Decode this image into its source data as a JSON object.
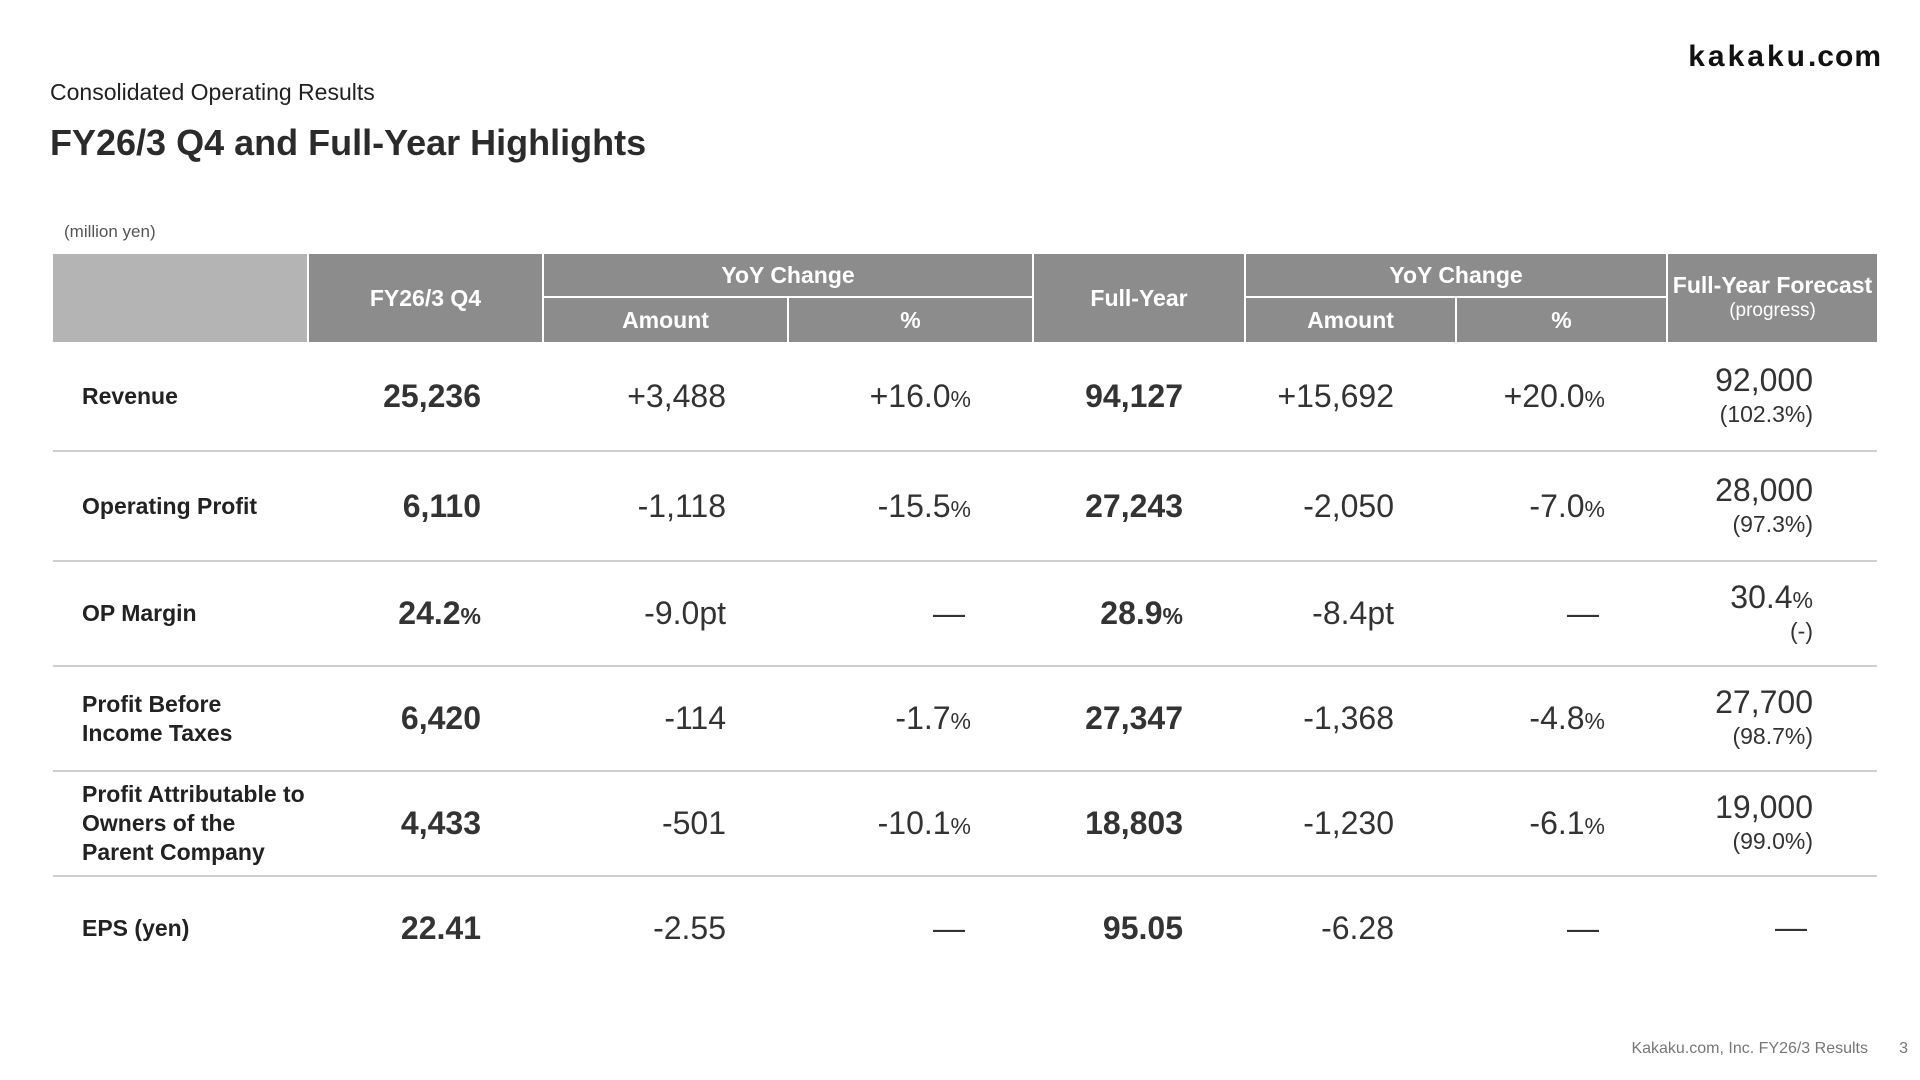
{
  "logo": {
    "brand": "kakaku",
    "suffix": ".com"
  },
  "header": {
    "subtitle": "Consolidated Operating Results",
    "title": "FY26/3 Q4 and Full-Year Highlights",
    "unit": "(million yen)"
  },
  "table": {
    "headers": {
      "q4": "FY26/3 Q4",
      "yoy1": "YoY Change",
      "full_year": "Full-Year",
      "yoy2": "YoY Change",
      "forecast": "Full-Year Forecast",
      "forecast_sub": "(progress)",
      "amount1": "Amount",
      "pct1": "%",
      "amount2": "Amount",
      "pct2": "%"
    },
    "rows": [
      {
        "label": "Revenue",
        "q4": "25,236",
        "q4_pct": "",
        "amt1": "+3,488",
        "pct1": "+16.0",
        "fy": "94,127",
        "fy_pct": "",
        "amt2": "+15,692",
        "pct2": "+20.0",
        "fc": "92,000",
        "fc_pct": "",
        "progress": "(102.3%)"
      },
      {
        "label": "Operating Profit",
        "q4": "6,110",
        "q4_pct": "",
        "amt1": "-1,118",
        "pct1": "-15.5",
        "fy": "27,243",
        "fy_pct": "",
        "amt2": "-2,050",
        "pct2": "-7.0",
        "fc": "28,000",
        "fc_pct": "",
        "progress": "(97.3%)"
      },
      {
        "label": "OP Margin",
        "q4": "24.2",
        "q4_pct": "%",
        "amt1": "-9.0pt",
        "pct1": "—",
        "fy": "28.9",
        "fy_pct": "%",
        "amt2": "-8.4pt",
        "pct2": "—",
        "fc": "30.4",
        "fc_pct": "%",
        "progress": "(-)"
      },
      {
        "label": "Profit Before Income Taxes",
        "q4": "6,420",
        "q4_pct": "",
        "amt1": "-114",
        "pct1": "-1.7",
        "fy": "27,347",
        "fy_pct": "",
        "amt2": "-1,368",
        "pct2": "-4.8",
        "fc": "27,700",
        "fc_pct": "",
        "progress": "(98.7%)"
      },
      {
        "label": "Profit Attributable to Owners of the Parent Company",
        "q4": "4,433",
        "q4_pct": "",
        "amt1": "-501",
        "pct1": "-10.1",
        "fy": "18,803",
        "fy_pct": "",
        "amt2": "-1,230",
        "pct2": "-6.1",
        "fc": "19,000",
        "fc_pct": "",
        "progress": "(99.0%)"
      },
      {
        "label": "EPS (yen)",
        "q4": "22.41",
        "q4_pct": "",
        "amt1": "-2.55",
        "pct1": "—",
        "fy": "95.05",
        "fy_pct": "",
        "amt2": "-6.28",
        "pct2": "—",
        "fc": "—",
        "fc_pct": "",
        "progress": ""
      }
    ],
    "percent_sign": "%"
  },
  "footer": {
    "text": "Kakaku.com, Inc. FY26/3 Results",
    "page": "3"
  }
}
